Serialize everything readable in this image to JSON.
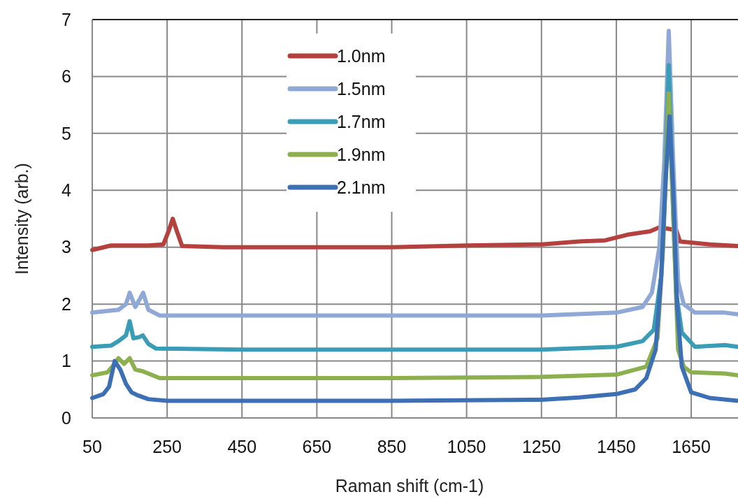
{
  "chart_data": {
    "type": "line",
    "xlabel": "Raman shift  (cm-1)",
    "ylabel": "Intensity  (arb.)",
    "xlim": [
      50,
      1775
    ],
    "xticks": [
      50,
      250,
      450,
      650,
      850,
      1050,
      1250,
      1450,
      1650
    ],
    "ylim": [
      0,
      7
    ],
    "yticks": [
      0,
      1,
      2,
      3,
      4,
      5,
      6,
      7
    ],
    "grid": true,
    "legend": "top",
    "marker": "none",
    "line_style": "solid",
    "series": [
      {
        "name": "1.0nm",
        "color": "#b5413e",
        "x": [
          50,
          100,
          200,
          240,
          255,
          265,
          275,
          290,
          400,
          650,
          850,
          1050,
          1250,
          1350,
          1420,
          1480,
          1540,
          1565,
          1610,
          1620,
          1700,
          1775
        ],
        "values": [
          2.95,
          3.03,
          3.03,
          3.05,
          3.3,
          3.5,
          3.3,
          3.02,
          3.0,
          3.0,
          3.0,
          3.03,
          3.05,
          3.1,
          3.12,
          3.22,
          3.28,
          3.35,
          3.3,
          3.1,
          3.05,
          3.02
        ]
      },
      {
        "name": "1.5nm",
        "color": "#8fa8d6",
        "x": [
          50,
          120,
          140,
          150,
          165,
          178,
          186,
          200,
          230,
          450,
          850,
          1250,
          1450,
          1520,
          1545,
          1565,
          1578,
          1590,
          1602,
          1615,
          1630,
          1660,
          1740,
          1775
        ],
        "values": [
          1.85,
          1.9,
          2.0,
          2.2,
          1.95,
          2.1,
          2.2,
          1.9,
          1.8,
          1.8,
          1.8,
          1.8,
          1.85,
          1.95,
          2.2,
          3.0,
          4.5,
          6.8,
          4.5,
          2.4,
          2.0,
          1.85,
          1.85,
          1.82
        ]
      },
      {
        "name": "1.7nm",
        "color": "#3a9db5",
        "x": [
          50,
          100,
          120,
          140,
          150,
          160,
          175,
          185,
          200,
          220,
          450,
          850,
          1250,
          1450,
          1520,
          1550,
          1570,
          1580,
          1590,
          1600,
          1610,
          1625,
          1660,
          1740,
          1775
        ],
        "values": [
          1.25,
          1.27,
          1.35,
          1.45,
          1.7,
          1.4,
          1.42,
          1.45,
          1.3,
          1.22,
          1.2,
          1.2,
          1.2,
          1.25,
          1.35,
          1.55,
          2.5,
          4.0,
          6.2,
          4.0,
          2.2,
          1.5,
          1.25,
          1.28,
          1.25
        ]
      },
      {
        "name": "1.9nm",
        "color": "#8db04e",
        "x": [
          50,
          90,
          110,
          120,
          135,
          150,
          165,
          185,
          200,
          230,
          450,
          850,
          1250,
          1450,
          1530,
          1560,
          1575,
          1590,
          1605,
          1615,
          1630,
          1650,
          1740,
          1775
        ],
        "values": [
          0.75,
          0.8,
          0.95,
          1.05,
          0.95,
          1.05,
          0.85,
          0.82,
          0.78,
          0.7,
          0.7,
          0.7,
          0.72,
          0.76,
          0.9,
          1.4,
          3.0,
          5.7,
          3.0,
          1.2,
          0.9,
          0.8,
          0.78,
          0.75
        ]
      },
      {
        "name": "2.1nm",
        "color": "#3d6fb5",
        "x": [
          50,
          80,
          95,
          110,
          125,
          140,
          155,
          170,
          200,
          250,
          450,
          850,
          1250,
          1350,
          1450,
          1500,
          1530,
          1555,
          1570,
          1582,
          1592,
          1602,
          1612,
          1625,
          1650,
          1700,
          1775
        ],
        "values": [
          0.35,
          0.42,
          0.55,
          1.0,
          0.85,
          0.6,
          0.45,
          0.4,
          0.33,
          0.3,
          0.3,
          0.3,
          0.32,
          0.36,
          0.42,
          0.5,
          0.7,
          1.2,
          2.5,
          4.2,
          5.3,
          4.0,
          2.0,
          0.9,
          0.45,
          0.35,
          0.3
        ]
      }
    ]
  }
}
